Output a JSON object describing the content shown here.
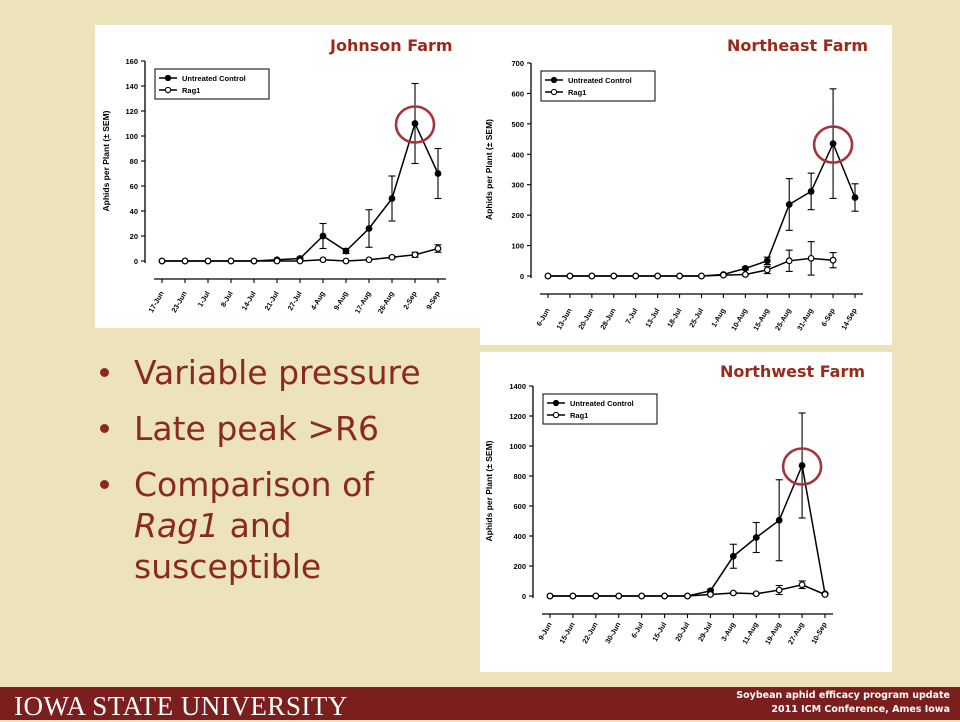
{
  "slide": {
    "bullets": [
      {
        "parts": [
          {
            "text": "Variable pressure",
            "italic": false
          }
        ]
      },
      {
        "parts": [
          {
            "text": "Late peak >R6",
            "italic": false
          }
        ]
      },
      {
        "parts": [
          {
            "text": "Comparison of ",
            "italic": false
          },
          {
            "text": "Rag1",
            "italic": true
          },
          {
            "text": " and susceptible",
            "italic": false
          }
        ]
      }
    ],
    "footer": {
      "university": "IOWA STATE UNIVERSITY",
      "line1": "Soybean aphid efficacy program update",
      "line2": "2011 ICM Conference, Ames Iowa"
    },
    "colors": {
      "background": "#ece2bc",
      "accent": "#8a2a1c",
      "footer": "#7a1e1e",
      "highlight_circle": "#a8323a"
    }
  },
  "chart_data": [
    {
      "type": "line",
      "title": "Johnson Farm",
      "ylabel": "Aphids per Plant (± SEM)",
      "ylim": [
        0,
        160
      ],
      "yticks": [
        0,
        20,
        40,
        60,
        80,
        100,
        120,
        140,
        160
      ],
      "categories": [
        "17-Jun",
        "23-Jun",
        "1-Jul",
        "8-Jul",
        "14-Jul",
        "21-Jul",
        "27-Jul",
        "4-Aug",
        "9-Aug",
        "17-Aug",
        "26-Aug",
        "2-Sep",
        "9-Sep"
      ],
      "legend_position": "top-left",
      "highlight_index": 11,
      "series": [
        {
          "name": "Untreated Control",
          "marker": "filled",
          "values": [
            0,
            0,
            0,
            0,
            0,
            1,
            2,
            20,
            8,
            26,
            50,
            110,
            70
          ],
          "errors": [
            0,
            0,
            0,
            0,
            0,
            0,
            1,
            10,
            2,
            15,
            18,
            32,
            20
          ]
        },
        {
          "name": "Rag1",
          "marker": "open",
          "values": [
            0,
            0,
            0,
            0,
            0,
            0,
            0,
            1,
            0,
            1,
            3,
            5,
            10
          ],
          "errors": [
            0,
            0,
            0,
            0,
            0,
            0,
            0,
            0,
            0,
            0,
            1,
            2,
            3
          ]
        }
      ]
    },
    {
      "type": "line",
      "title": "Northeast Farm",
      "ylabel": "Aphids per Plant (± SEM)",
      "ylim": [
        0,
        700
      ],
      "yticks": [
        0,
        100,
        200,
        300,
        400,
        500,
        600,
        700
      ],
      "categories": [
        "6-Jun",
        "13-Jun",
        "20-Jun",
        "28-Jun",
        "7-Jul",
        "13-Jul",
        "18-Jul",
        "25-Jul",
        "1-Aug",
        "10-Aug",
        "15-Aug",
        "25-Aug",
        "31-Aug",
        "6-Sep",
        "14-Sep"
      ],
      "legend_position": "top-left",
      "highlight_index": 13,
      "series": [
        {
          "name": "Untreated Control",
          "marker": "filled",
          "values": [
            0,
            0,
            0,
            0,
            0,
            0,
            0,
            0,
            5,
            25,
            50,
            235,
            278,
            435,
            258
          ],
          "errors": [
            0,
            0,
            0,
            0,
            0,
            0,
            0,
            0,
            2,
            5,
            12,
            85,
            60,
            180,
            45
          ]
        },
        {
          "name": "Rag1",
          "marker": "open",
          "values": [
            0,
            0,
            0,
            0,
            0,
            0,
            0,
            0,
            3,
            5,
            20,
            50,
            58,
            52,
            null
          ],
          "errors": [
            0,
            0,
            0,
            0,
            0,
            0,
            0,
            0,
            1,
            2,
            12,
            35,
            55,
            25,
            null
          ]
        }
      ]
    },
    {
      "type": "line",
      "title": "Northwest Farm",
      "ylabel": "Aphids per Plant (± SEM)",
      "ylim": [
        0,
        1400
      ],
      "yticks": [
        0,
        200,
        400,
        600,
        800,
        1000,
        1200,
        1400
      ],
      "categories": [
        "9-Jun",
        "15-Jun",
        "22-Jun",
        "30-Jun",
        "6-Jul",
        "15-Jul",
        "20-Jul",
        "29-Jul",
        "3-Aug",
        "11-Aug",
        "19-Aug",
        "27-Aug",
        "10-Sep"
      ],
      "legend_position": "top-left",
      "highlight_index": 11,
      "series": [
        {
          "name": "Untreated Control",
          "marker": "filled",
          "values": [
            0,
            0,
            0,
            0,
            0,
            0,
            0,
            35,
            265,
            390,
            505,
            870,
            15
          ],
          "errors": [
            0,
            0,
            0,
            0,
            0,
            0,
            0,
            10,
            80,
            100,
            270,
            350,
            5
          ]
        },
        {
          "name": "Rag1",
          "marker": "open",
          "values": [
            0,
            0,
            0,
            0,
            0,
            0,
            0,
            10,
            20,
            15,
            40,
            75,
            10
          ],
          "errors": [
            0,
            0,
            0,
            0,
            0,
            0,
            0,
            3,
            5,
            5,
            30,
            25,
            3
          ]
        }
      ]
    }
  ]
}
